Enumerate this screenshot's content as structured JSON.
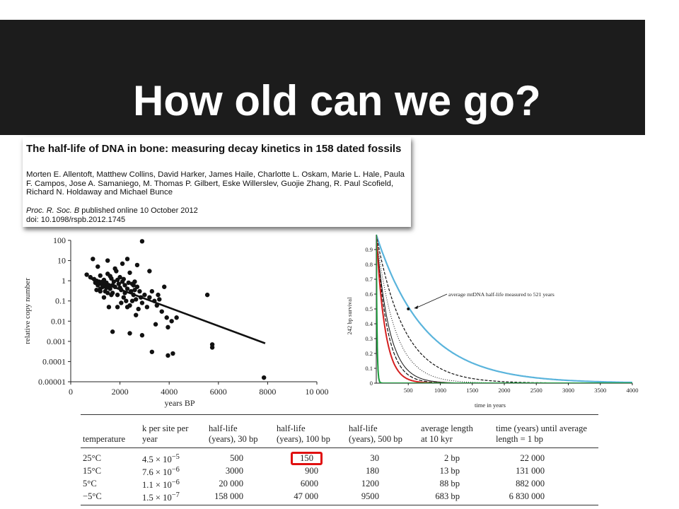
{
  "slide": {
    "title": "How old can we go?"
  },
  "paper": {
    "title": "The half-life of DNA in bone: measuring decay kinetics in 158 dated fossils",
    "authors": "Morten E. Allentoft, Matthew Collins, David Harker, James Haile, Charlotte L. Oskam, Marie L. Hale, Paula F. Campos, Jose A. Samaniego, M. Thomas P. Gilbert, Eske Willerslev, Guojie Zhang, R. Paul Scofield, Richard N. Holdaway and Michael Bunce",
    "journal": "Proc. R. Soc. B",
    "published": " published online 10 October 2012",
    "doi": "doi: 10.1098/rspb.2012.1745"
  },
  "chart_data": [
    {
      "type": "scatter",
      "xlabel": "years BP",
      "ylabel": "relative copy number",
      "y_scale": "log",
      "xlim": [
        0,
        10000
      ],
      "ylim": [
        1e-05,
        100
      ],
      "x_ticks": [
        "0",
        "2000",
        "4000",
        "6000",
        "8000",
        "10 000"
      ],
      "y_ticks": [
        "0.00001",
        "0.0001",
        "0.001",
        "0.01",
        "0.1",
        "1",
        "10",
        "100"
      ],
      "regression_line": {
        "x": [
          800,
          7900
        ],
        "y": [
          1.3,
          0.0008
        ]
      },
      "points": [
        [
          2900,
          90
        ],
        [
          900,
          12
        ],
        [
          1500,
          10
        ],
        [
          2300,
          12
        ],
        [
          2100,
          7
        ],
        [
          1100,
          5
        ],
        [
          1800,
          4
        ],
        [
          2700,
          6
        ],
        [
          2400,
          2.5
        ],
        [
          3200,
          3
        ],
        [
          3800,
          0.5
        ],
        [
          5550,
          0.2
        ],
        [
          650,
          2
        ],
        [
          800,
          1.5
        ],
        [
          950,
          1.2
        ],
        [
          1050,
          1
        ],
        [
          1150,
          0.9
        ],
        [
          1200,
          1.8
        ],
        [
          1250,
          0.7
        ],
        [
          1300,
          0.5
        ],
        [
          1350,
          1.1
        ],
        [
          1400,
          0.3
        ],
        [
          1450,
          0.8
        ],
        [
          1500,
          2.2
        ],
        [
          1550,
          0.6
        ],
        [
          1600,
          0.4
        ],
        [
          1650,
          1.3
        ],
        [
          1700,
          0.25
        ],
        [
          1750,
          0.9
        ],
        [
          1800,
          0.5
        ],
        [
          1850,
          3
        ],
        [
          1900,
          0.2
        ],
        [
          1950,
          0.7
        ],
        [
          2000,
          1.5
        ],
        [
          2050,
          0.35
        ],
        [
          2100,
          0.9
        ],
        [
          2150,
          0.15
        ],
        [
          2200,
          0.6
        ],
        [
          2250,
          0.1
        ],
        [
          2300,
          0.4
        ],
        [
          2350,
          0.8
        ],
        [
          2400,
          0.06
        ],
        [
          2450,
          0.3
        ],
        [
          2500,
          0.7
        ],
        [
          2550,
          0.2
        ],
        [
          2600,
          0.9
        ],
        [
          2650,
          0.12
        ],
        [
          2700,
          0.5
        ],
        [
          2750,
          0.04
        ],
        [
          2800,
          0.3
        ],
        [
          2900,
          0.08
        ],
        [
          3000,
          0.2
        ],
        [
          3100,
          0.05
        ],
        [
          3200,
          0.15
        ],
        [
          3300,
          0.3
        ],
        [
          3400,
          0.1
        ],
        [
          3500,
          0.06
        ],
        [
          3600,
          0.12
        ],
        [
          3700,
          0.03
        ],
        [
          3900,
          0.015
        ],
        [
          4100,
          0.01
        ],
        [
          4300,
          0.015
        ],
        [
          1000,
          0.8
        ],
        [
          1100,
          0.6
        ],
        [
          1200,
          0.4
        ],
        [
          1300,
          0.9
        ],
        [
          1400,
          0.6
        ],
        [
          1500,
          0.25
        ],
        [
          1600,
          1.7
        ],
        [
          1700,
          0.6
        ],
        [
          1900,
          1.1
        ],
        [
          2000,
          0.45
        ],
        [
          2200,
          0.25
        ],
        [
          2300,
          0.05
        ],
        [
          2500,
          0.1
        ],
        [
          1700,
          0.003
        ],
        [
          2400,
          0.0025
        ],
        [
          2900,
          0.002
        ],
        [
          3300,
          0.0003
        ],
        [
          3950,
          0.0002
        ],
        [
          4150,
          0.00025
        ],
        [
          3950,
          0.005
        ],
        [
          5750,
          0.0007
        ],
        [
          5750,
          0.0005
        ],
        [
          7850,
          1.6e-05
        ],
        [
          3450,
          0.007
        ],
        [
          2650,
          0.02
        ],
        [
          1550,
          0.05
        ],
        [
          1350,
          0.15
        ],
        [
          1200,
          0.3
        ],
        [
          2050,
          0.08
        ],
        [
          2850,
          0.15
        ],
        [
          3550,
          0.2
        ],
        [
          1050,
          0.35
        ],
        [
          1450,
          0.45
        ],
        [
          2150,
          1.2
        ],
        [
          2550,
          0.6
        ],
        [
          1650,
          0.2
        ],
        [
          1900,
          0.05
        ],
        [
          2600,
          0.35
        ]
      ]
    },
    {
      "type": "line",
      "xlabel": "time in years",
      "ylabel": "242 bp survival",
      "xlim": [
        0,
        4000
      ],
      "ylim": [
        0,
        1
      ],
      "x_ticks": [
        "500",
        "1000",
        "1500",
        "2000",
        "2500",
        "3000",
        "3500",
        "4000"
      ],
      "y_ticks": [
        "0",
        "0.1",
        "0.2",
        "0.3",
        "0.4",
        "0.5",
        "0.6",
        "0.7",
        "0.8",
        "0.9"
      ],
      "annotation": {
        "text": "average mtDNA half-life measured to 521 years",
        "point": [
          500,
          0.5
        ]
      },
      "series": [
        {
          "half_life_years": 521,
          "color": "#5ab4dc",
          "dash": "solid",
          "width": 2.2
        },
        {
          "half_life_years": 300,
          "color": "#111111",
          "dash": "4,2",
          "width": 1.2
        },
        {
          "half_life_years": 200,
          "color": "#111111",
          "dash": "1,2",
          "width": 1.0
        },
        {
          "half_life_years": 140,
          "color": "#111111",
          "dash": "solid",
          "width": 1.0
        },
        {
          "half_life_years": 120,
          "color": "#111111",
          "dash": "5,2",
          "width": 1.2
        },
        {
          "half_life_years": 95,
          "color": "#d42020",
          "dash": "solid",
          "width": 2.0
        },
        {
          "half_life_years": 8,
          "color": "#1a9a3a",
          "dash": "solid",
          "width": 2.0
        }
      ]
    }
  ],
  "table": {
    "headers": [
      {
        "label": "temperature",
        "sub": ""
      },
      {
        "label": "k per site per",
        "sub": "year"
      },
      {
        "label": "half-life",
        "sub": "(years), 30 bp"
      },
      {
        "label": "half-life",
        "sub": "(years), 100 bp"
      },
      {
        "label": "half-life",
        "sub": "(years), 500 bp"
      },
      {
        "label": "average length",
        "sub": "at 10 kyr"
      },
      {
        "label": "time (years) until average",
        "sub": "length = 1 bp"
      }
    ],
    "rows": [
      {
        "temp": "25°C",
        "k": "4.5 × 10",
        "k_exp": "−5",
        "hl30": "500",
        "hl100": "150",
        "hl500": "30",
        "avg": "2 bp",
        "time": "22 000"
      },
      {
        "temp": "15°C",
        "k": "7.6 × 10",
        "k_exp": "−6",
        "hl30": "3000",
        "hl100": "900",
        "hl500": "180",
        "avg": "13 bp",
        "time": "131 000"
      },
      {
        "temp": "5°C",
        "k": "1.1 × 10",
        "k_exp": "−6",
        "hl30": "20 000",
        "hl100": "6000",
        "hl500": "1200",
        "avg": "88 bp",
        "time": "882 000"
      },
      {
        "temp": "−5°C",
        "k": "1.5 × 10",
        "k_exp": "−7",
        "hl30": "158 000",
        "hl100": "47 000",
        "hl500": "9500",
        "avg": "683 bp",
        "time": "6 830 000"
      }
    ],
    "highlight_color": "#e01010"
  }
}
